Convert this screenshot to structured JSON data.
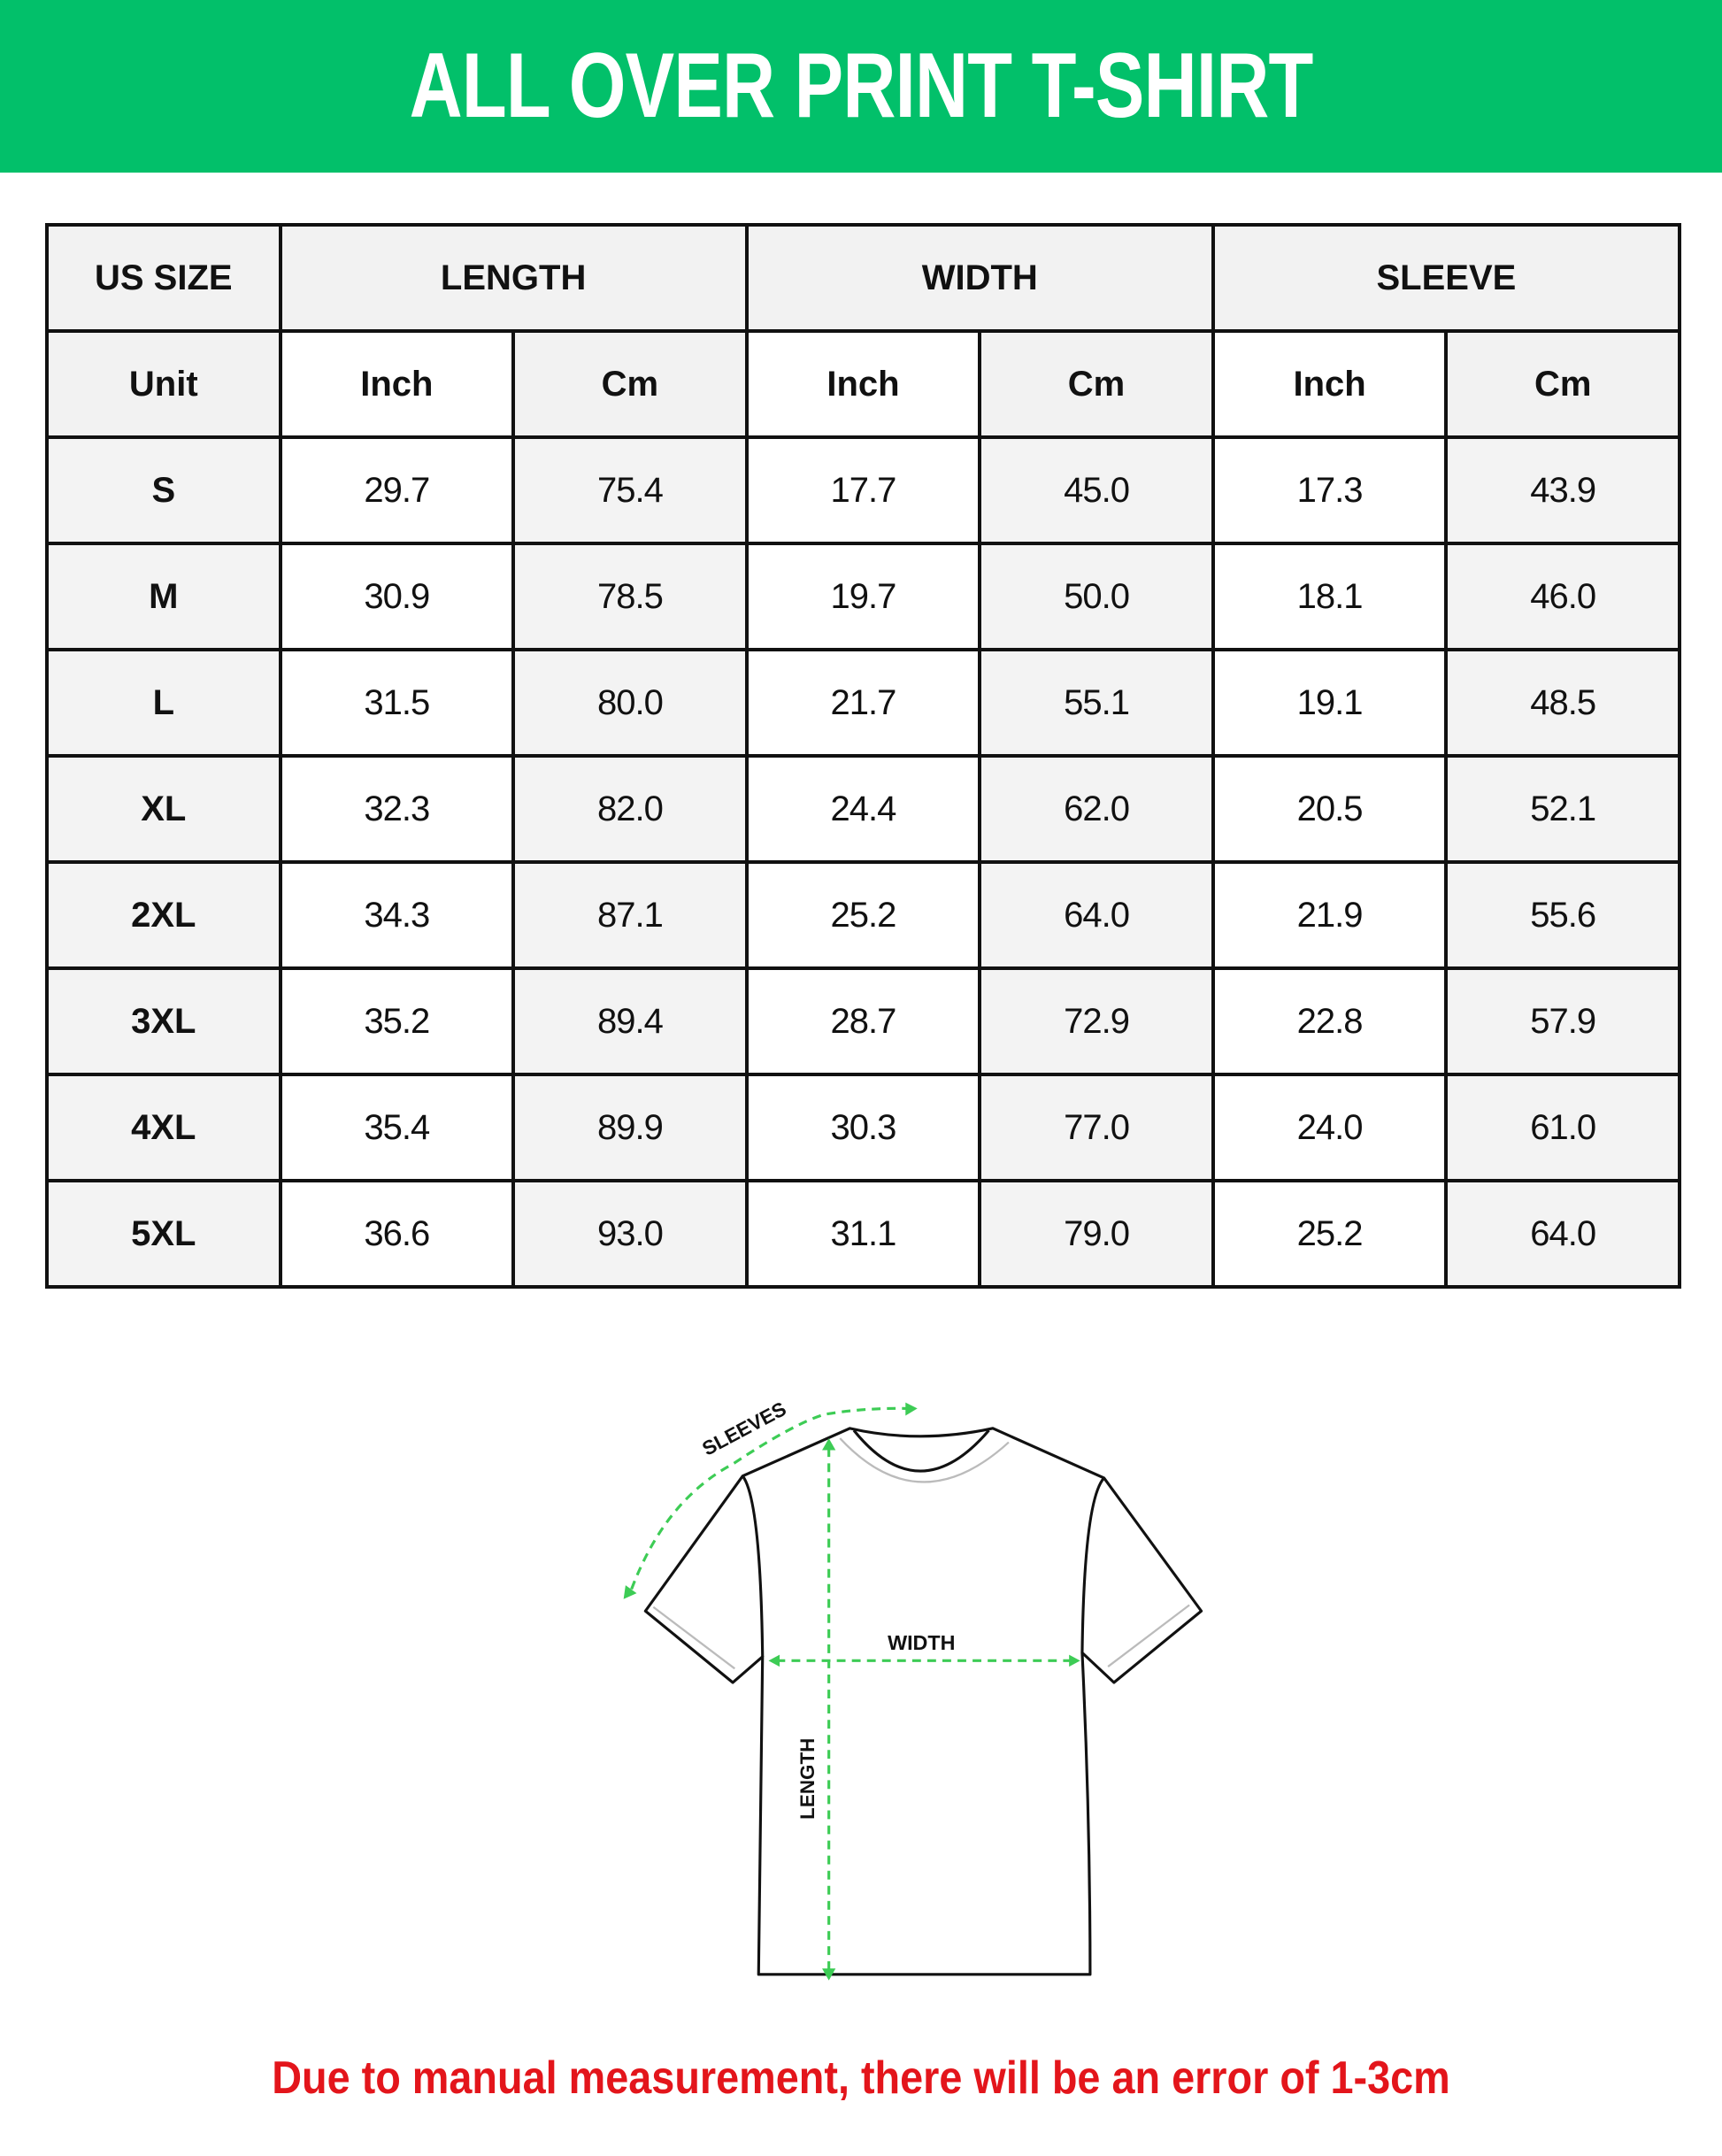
{
  "title": "ALL OVER PRINT T-SHIRT",
  "colors": {
    "banner": "#02c06a",
    "arrows": "#3dcc55",
    "note": "#e3151b"
  },
  "table": {
    "group_headers": [
      "US SIZE",
      "LENGTH",
      "WIDTH",
      "SLEEVE"
    ],
    "unit_row": [
      "Unit",
      "Inch",
      "Cm",
      "Inch",
      "Cm",
      "Inch",
      "Cm"
    ],
    "rows": [
      [
        "S",
        "29.7",
        "75.4",
        "17.7",
        "45.0",
        "17.3",
        "43.9"
      ],
      [
        "M",
        "30.9",
        "78.5",
        "19.7",
        "50.0",
        "18.1",
        "46.0"
      ],
      [
        "L",
        "31.5",
        "80.0",
        "21.7",
        "55.1",
        "19.1",
        "48.5"
      ],
      [
        "XL",
        "32.3",
        "82.0",
        "24.4",
        "62.0",
        "20.5",
        "52.1"
      ],
      [
        "2XL",
        "34.3",
        "87.1",
        "25.2",
        "64.0",
        "21.9",
        "55.6"
      ],
      [
        "3XL",
        "35.2",
        "89.4",
        "28.7",
        "72.9",
        "22.8",
        "57.9"
      ],
      [
        "4XL",
        "35.4",
        "89.9",
        "30.3",
        "77.0",
        "24.0",
        "61.0"
      ],
      [
        "5XL",
        "36.6",
        "93.0",
        "31.1",
        "79.0",
        "25.2",
        "64.0"
      ]
    ]
  },
  "diagram": {
    "sleeves_label": "SLEEVES",
    "width_label": "WIDTH",
    "length_label": "LENGTH"
  },
  "note": "Due to manual measurement, there will be an error of 1-3cm"
}
